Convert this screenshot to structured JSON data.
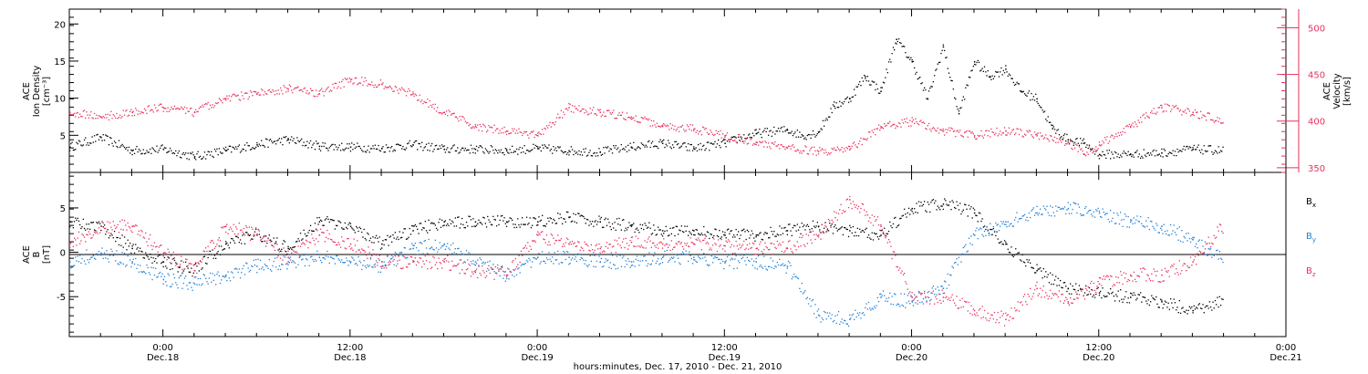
{
  "colors": {
    "black": "#000000",
    "pink": "#e8315e",
    "blue": "#1f7fd6"
  },
  "chart_data": [
    {
      "type": "scatter",
      "panel": "top",
      "ylabel_left": [
        "ACE",
        "Ion Density",
        "[cm⁻³]"
      ],
      "ylabel_right": [
        "ACE",
        "Velocity",
        "[km/s]"
      ],
      "ylim_left": [
        0,
        22
      ],
      "ylim_right": [
        345,
        520
      ],
      "yticks_left": [
        5,
        10,
        15,
        20
      ],
      "yticks_right": [
        350,
        400,
        450,
        500
      ],
      "x_unit": "hours since Dec.17 2010 18:00",
      "xlim": [
        0,
        78
      ],
      "series": [
        {
          "name": "Ion Density",
          "axis": "left",
          "color": "#000000",
          "x": [
            0,
            2,
            4,
            6,
            8,
            10,
            12,
            14,
            16,
            18,
            20,
            22,
            24,
            26,
            28,
            30,
            32,
            34,
            36,
            38,
            40,
            42,
            44,
            46,
            47,
            48,
            49,
            50,
            51,
            52,
            53,
            54,
            55,
            56,
            57,
            58,
            59,
            60,
            61,
            62,
            63,
            64,
            65,
            66,
            68,
            70,
            72,
            74
          ],
          "y": [
            3.5,
            4.8,
            3,
            3.2,
            2.2,
            3,
            3.8,
            4.5,
            3.6,
            3.5,
            3.3,
            3.8,
            3.2,
            3.2,
            3.0,
            3.3,
            3.0,
            2.8,
            3.5,
            4.0,
            3.3,
            4.0,
            5.3,
            5.8,
            5,
            5.5,
            9,
            10,
            13,
            11,
            18,
            15,
            10,
            17,
            8,
            15,
            13,
            14,
            11,
            10,
            6,
            4.5,
            4,
            2.5,
            2.5,
            2.7,
            3.2,
            3.0
          ]
        },
        {
          "name": "Velocity",
          "axis": "right",
          "color": "#e8315e",
          "x": [
            0,
            2,
            4,
            6,
            8,
            10,
            12,
            14,
            16,
            18,
            20,
            22,
            24,
            26,
            28,
            30,
            32,
            34,
            36,
            38,
            40,
            42,
            44,
            46,
            48,
            50,
            52,
            54,
            56,
            58,
            60,
            62,
            64,
            65,
            66,
            68,
            70,
            72,
            74
          ],
          "y": [
            410,
            405,
            410,
            415,
            410,
            425,
            430,
            435,
            430,
            445,
            440,
            430,
            410,
            395,
            390,
            385,
            415,
            410,
            405,
            395,
            392,
            385,
            378,
            372,
            368,
            370,
            395,
            400,
            390,
            385,
            390,
            385,
            378,
            365,
            375,
            395,
            415,
            410,
            400
          ]
        }
      ]
    },
    {
      "type": "scatter",
      "panel": "bottom",
      "ylabel_left": [
        "ACE",
        "B",
        "[nT]"
      ],
      "ylim": [
        -9.5,
        9
      ],
      "yticks": [
        -5,
        0,
        5
      ],
      "zero_line": true,
      "x_unit": "hours since Dec.17 2010 18:00",
      "xlim": [
        0,
        78
      ],
      "series": [
        {
          "name": "Bx",
          "legend_main": "B",
          "legend_sub": "x",
          "color": "#000000",
          "x": [
            0,
            2,
            4,
            6,
            8,
            10,
            12,
            14,
            16,
            18,
            20,
            22,
            24,
            26,
            28,
            30,
            32,
            34,
            36,
            38,
            40,
            42,
            44,
            46,
            48,
            50,
            52,
            54,
            56,
            58,
            60,
            62,
            64,
            66,
            68,
            70,
            72,
            74
          ],
          "y": [
            3.5,
            3,
            0.5,
            -1,
            -2,
            1,
            2,
            0.5,
            3.5,
            3,
            1,
            2.5,
            3.5,
            3.5,
            3.5,
            3.5,
            4,
            3.5,
            3,
            2.5,
            2.5,
            2,
            2,
            2.5,
            3,
            2.5,
            2,
            5,
            5.5,
            4.5,
            1,
            -2,
            -4,
            -4.5,
            -5,
            -5.5,
            -6.5,
            -5.5
          ]
        },
        {
          "name": "By",
          "legend_main": "B",
          "legend_sub": "y",
          "color": "#1f7fd6",
          "x": [
            0,
            2,
            4,
            6,
            8,
            10,
            12,
            14,
            16,
            18,
            20,
            22,
            24,
            26,
            28,
            30,
            32,
            34,
            36,
            38,
            40,
            42,
            44,
            46,
            48,
            50,
            52,
            54,
            56,
            58,
            60,
            62,
            64,
            66,
            68,
            70,
            72,
            74
          ],
          "y": [
            -1,
            0,
            -1,
            -3,
            -3.5,
            -2.5,
            -1.5,
            -1,
            -0.5,
            -1,
            -1.5,
            0.5,
            1,
            -1,
            -2.5,
            -0.5,
            -0.5,
            -1,
            -1,
            -0.5,
            -0.5,
            -1,
            -1,
            -1.5,
            -7,
            -7.5,
            -5,
            -5.5,
            -4,
            2,
            3.5,
            4.5,
            5,
            4.5,
            3.5,
            3,
            1.5,
            -1
          ]
        },
        {
          "name": "Bz",
          "legend_main": "B",
          "legend_sub": "z",
          "color": "#e8315e",
          "x": [
            0,
            2,
            4,
            6,
            8,
            10,
            12,
            14,
            16,
            18,
            20,
            22,
            24,
            26,
            28,
            30,
            32,
            34,
            36,
            38,
            40,
            42,
            44,
            46,
            48,
            50,
            52,
            54,
            56,
            58,
            60,
            62,
            64,
            66,
            68,
            70,
            72,
            74
          ],
          "y": [
            1,
            3,
            3,
            0,
            -2,
            3,
            2,
            -0.5,
            2,
            1,
            -1,
            -1,
            -1,
            -2,
            -2.5,
            2,
            1,
            0.5,
            1.2,
            1,
            1,
            0.8,
            0.5,
            0.5,
            2,
            6,
            3,
            -5,
            -5,
            -6.5,
            -7.5,
            -4,
            -5.5,
            -3.5,
            -2.5,
            -2.5,
            -1,
            3
          ]
        }
      ]
    }
  ],
  "xaxis": {
    "ticks": [
      {
        "x": 6,
        "time": "0:00",
        "date": "Dec.18"
      },
      {
        "x": 18,
        "time": "12:00",
        "date": "Dec.18"
      },
      {
        "x": 30,
        "time": "0:00",
        "date": "Dec.19"
      },
      {
        "x": 42,
        "time": "12:00",
        "date": "Dec.19"
      },
      {
        "x": 54,
        "time": "0:00",
        "date": "Dec.20"
      },
      {
        "x": 66,
        "time": "12:00",
        "date": "Dec.20"
      },
      {
        "x": 78,
        "time": "0:00",
        "date": "Dec.21"
      }
    ],
    "title": "hours:minutes, Dec. 17, 2010 - Dec. 21, 2010"
  }
}
